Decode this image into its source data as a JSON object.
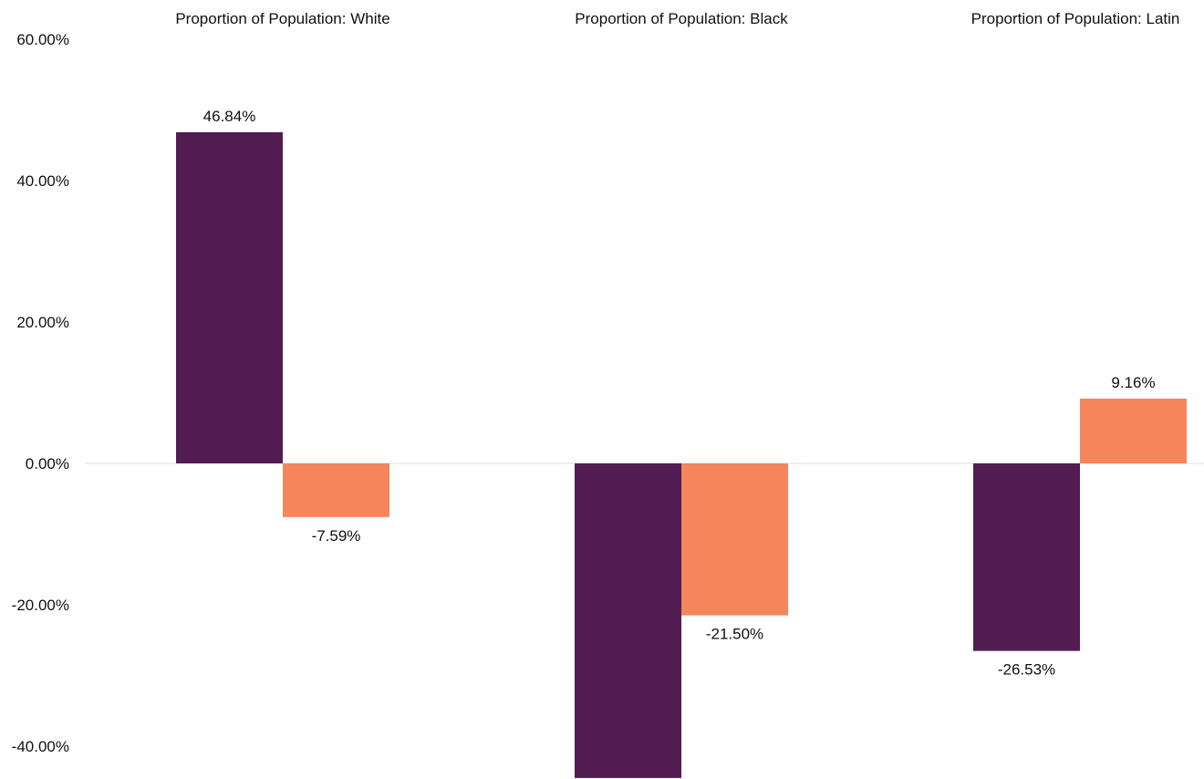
{
  "chart_data": {
    "type": "bar",
    "categories": [
      "Proportion of Population: White",
      "Proportion of Population: Black",
      "Proportion of Population: Latin"
    ],
    "series": [
      {
        "color": "#521c52",
        "values": [
          46.84,
          -44.5,
          -26.53
        ],
        "labels": [
          "46.84%",
          "",
          "-26.53%"
        ]
      },
      {
        "color": "#f5865c",
        "values": [
          -7.59,
          -21.5,
          9.16
        ],
        "labels": [
          "-7.59%",
          "-21.50%",
          "9.16%"
        ]
      }
    ],
    "yticks": [
      60,
      40,
      20,
      0,
      -20,
      -40
    ],
    "ytick_labels": [
      "60.00%",
      "40.00%",
      "20.00%",
      "0.00%",
      "-20.00%",
      "-40.00%"
    ],
    "ylim": [
      -44.5,
      60
    ],
    "xlabel": "",
    "ylabel": "",
    "grid": false,
    "zero_line": true,
    "zero_line_color": "#dddddd",
    "legend": "none"
  }
}
